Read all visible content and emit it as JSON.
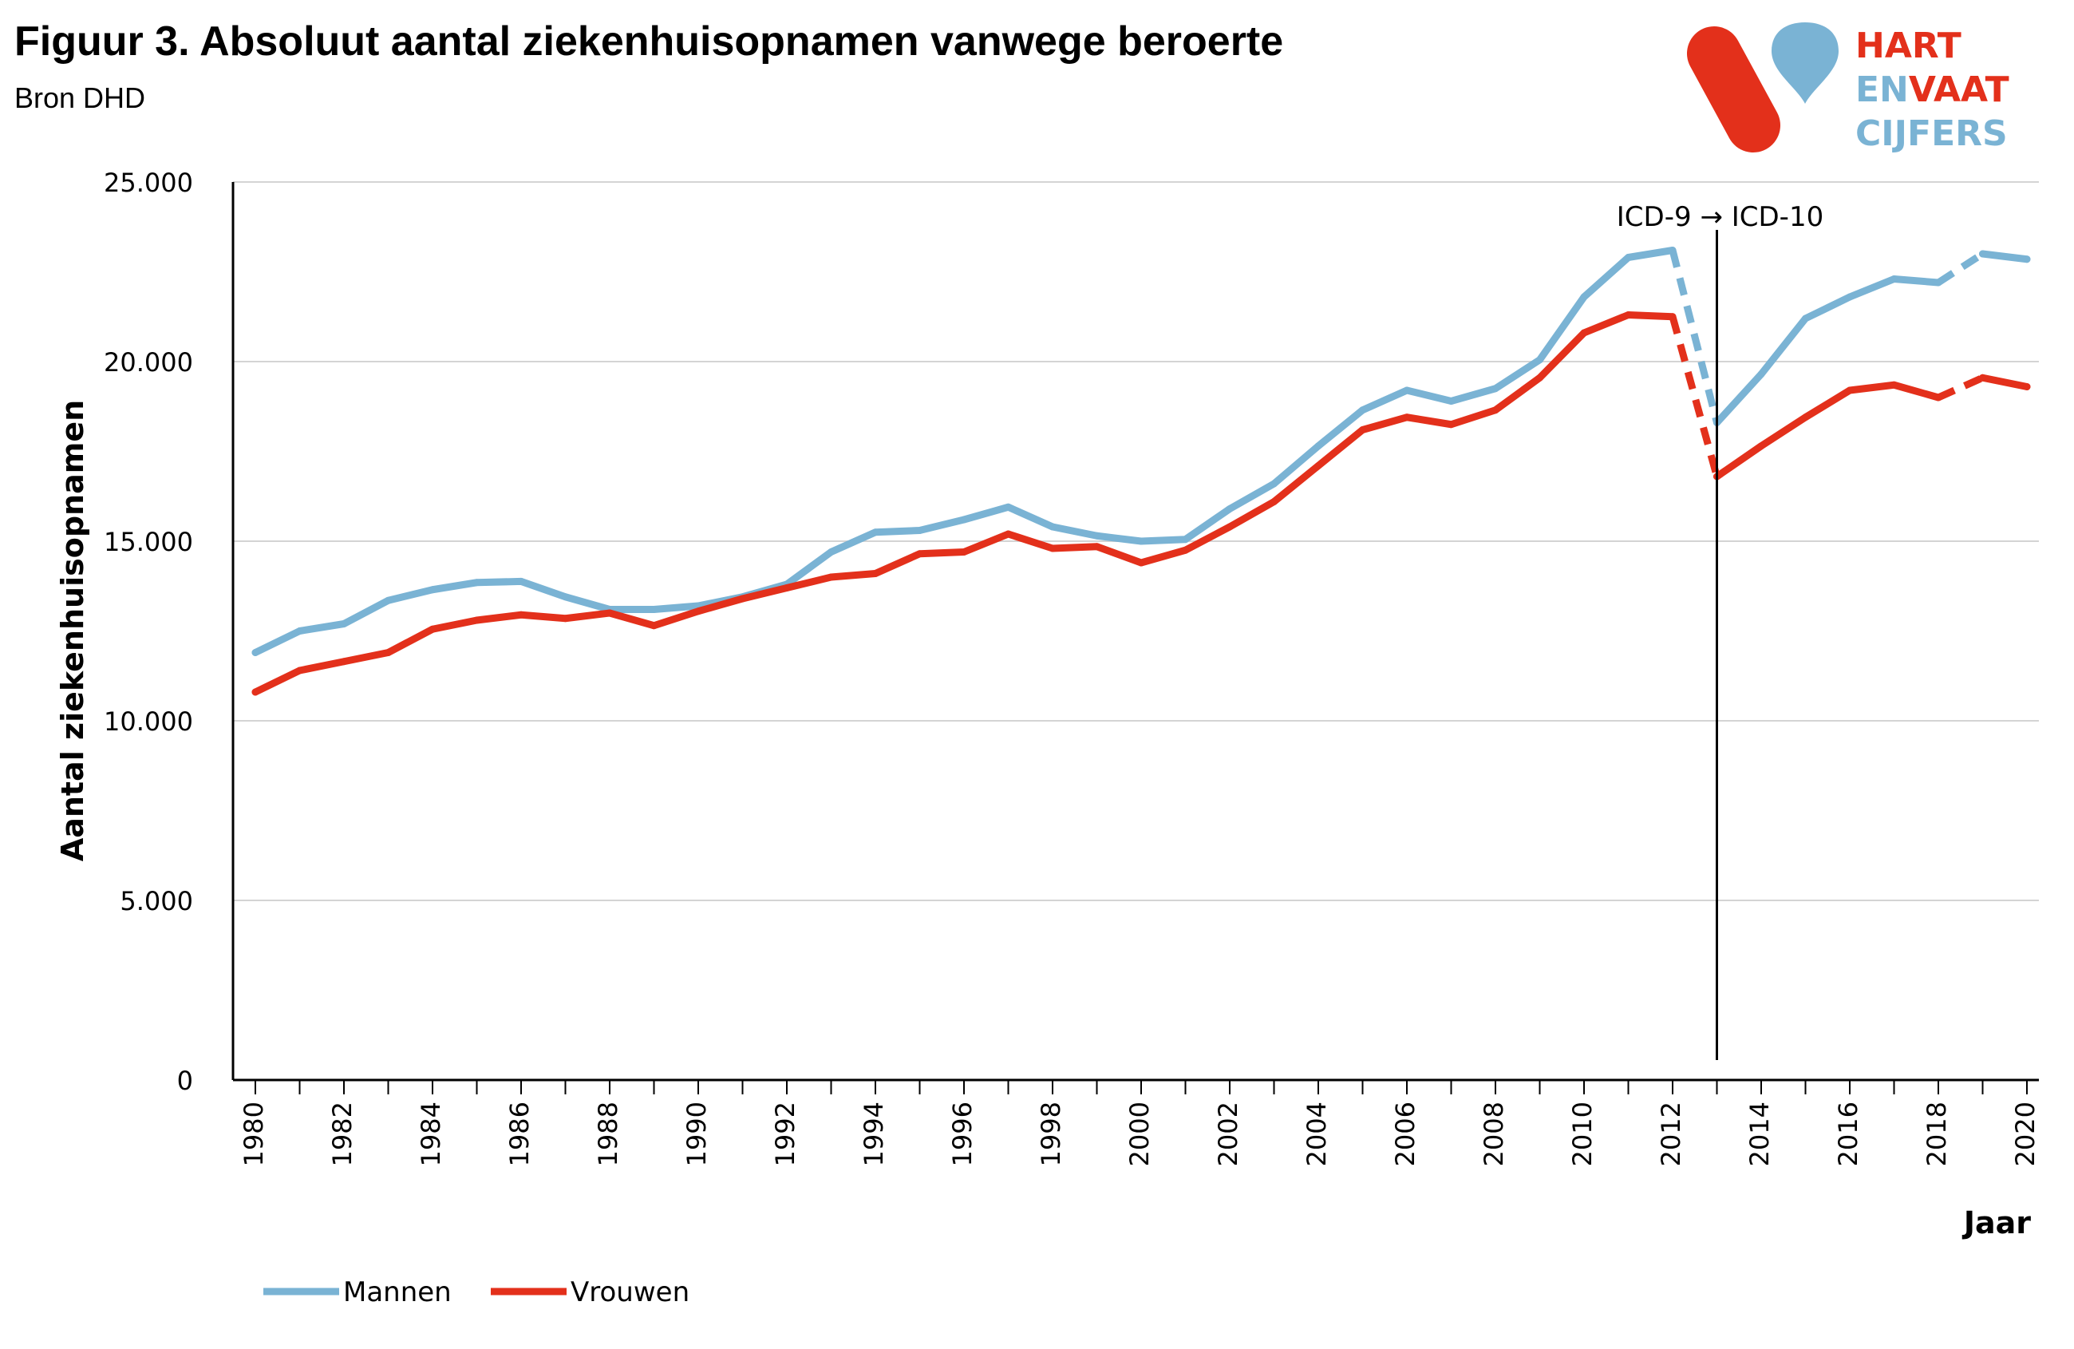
{
  "header": {
    "title": "Figuur 3. Absoluut aantal ziekenhuisopnamen vanwege beroerte",
    "subtitle": "Bron DHD"
  },
  "logo": {
    "line1": "HART",
    "line2a": "EN",
    "line2b": "VAAT",
    "line3": "CIJFERS",
    "colors": {
      "red": "#e3301b",
      "blue": "#7ab3d4"
    }
  },
  "chart_data": {
    "type": "line",
    "title": "Figuur 3. Absoluut aantal ziekenhuisopnamen vanwege beroerte",
    "subtitle": "Bron DHD",
    "xlabel": "Jaar",
    "ylabel": "Aantal ziekenhuisopnamen",
    "ylim": [
      0,
      25000
    ],
    "y_ticks": [
      0,
      5000,
      10000,
      15000,
      20000,
      25000
    ],
    "y_tick_labels": [
      "0",
      "5.000",
      "10.000",
      "15.000",
      "20.000",
      "25.000"
    ],
    "x_tick_labels": [
      "1980",
      "1982",
      "1984",
      "1986",
      "1988",
      "1990",
      "1992",
      "1994",
      "1996",
      "1998",
      "2000",
      "2002",
      "2004",
      "2006",
      "2008",
      "2010",
      "2012",
      "2014",
      "2016",
      "2018",
      "2020"
    ],
    "x": [
      1980,
      1981,
      1982,
      1983,
      1984,
      1985,
      1986,
      1987,
      1988,
      1989,
      1990,
      1991,
      1992,
      1993,
      1994,
      1995,
      1996,
      1997,
      1998,
      1999,
      2000,
      2001,
      2002,
      2003,
      2004,
      2005,
      2006,
      2007,
      2008,
      2009,
      2010,
      2011,
      2012,
      2013,
      2014,
      2015,
      2016,
      2017,
      2018,
      2019,
      2020
    ],
    "grid": true,
    "legend_position": "bottom-left",
    "dashed_segments": [
      [
        2012,
        2013
      ],
      [
        2018,
        2019
      ]
    ],
    "annotation": {
      "label": "ICD-9 → ICD-10",
      "x": 2013
    },
    "series": [
      {
        "name": "Mannen",
        "color": "#7ab3d4",
        "values": [
          11900,
          12500,
          12700,
          13350,
          13650,
          13850,
          13880,
          13450,
          13100,
          13100,
          13200,
          13450,
          13800,
          14700,
          15250,
          15300,
          15600,
          15950,
          15400,
          15150,
          15000,
          15050,
          15900,
          16600,
          17650,
          18650,
          19200,
          18900,
          19250,
          20050,
          21800,
          22900,
          23100,
          18300,
          19650,
          21200,
          21800,
          22300,
          22200,
          23000,
          22850
        ]
      },
      {
        "name": "Vrouwen",
        "color": "#e3301b",
        "values": [
          10800,
          11400,
          11650,
          11900,
          12550,
          12800,
          12950,
          12850,
          13000,
          12650,
          13050,
          13400,
          13700,
          14000,
          14100,
          14650,
          14700,
          15200,
          14800,
          14850,
          14400,
          14750,
          15400,
          16100,
          17100,
          18100,
          18450,
          18250,
          18650,
          19550,
          20800,
          21300,
          21250,
          16800,
          17650,
          18450,
          19200,
          19350,
          19000,
          19550,
          19300
        ]
      }
    ]
  }
}
